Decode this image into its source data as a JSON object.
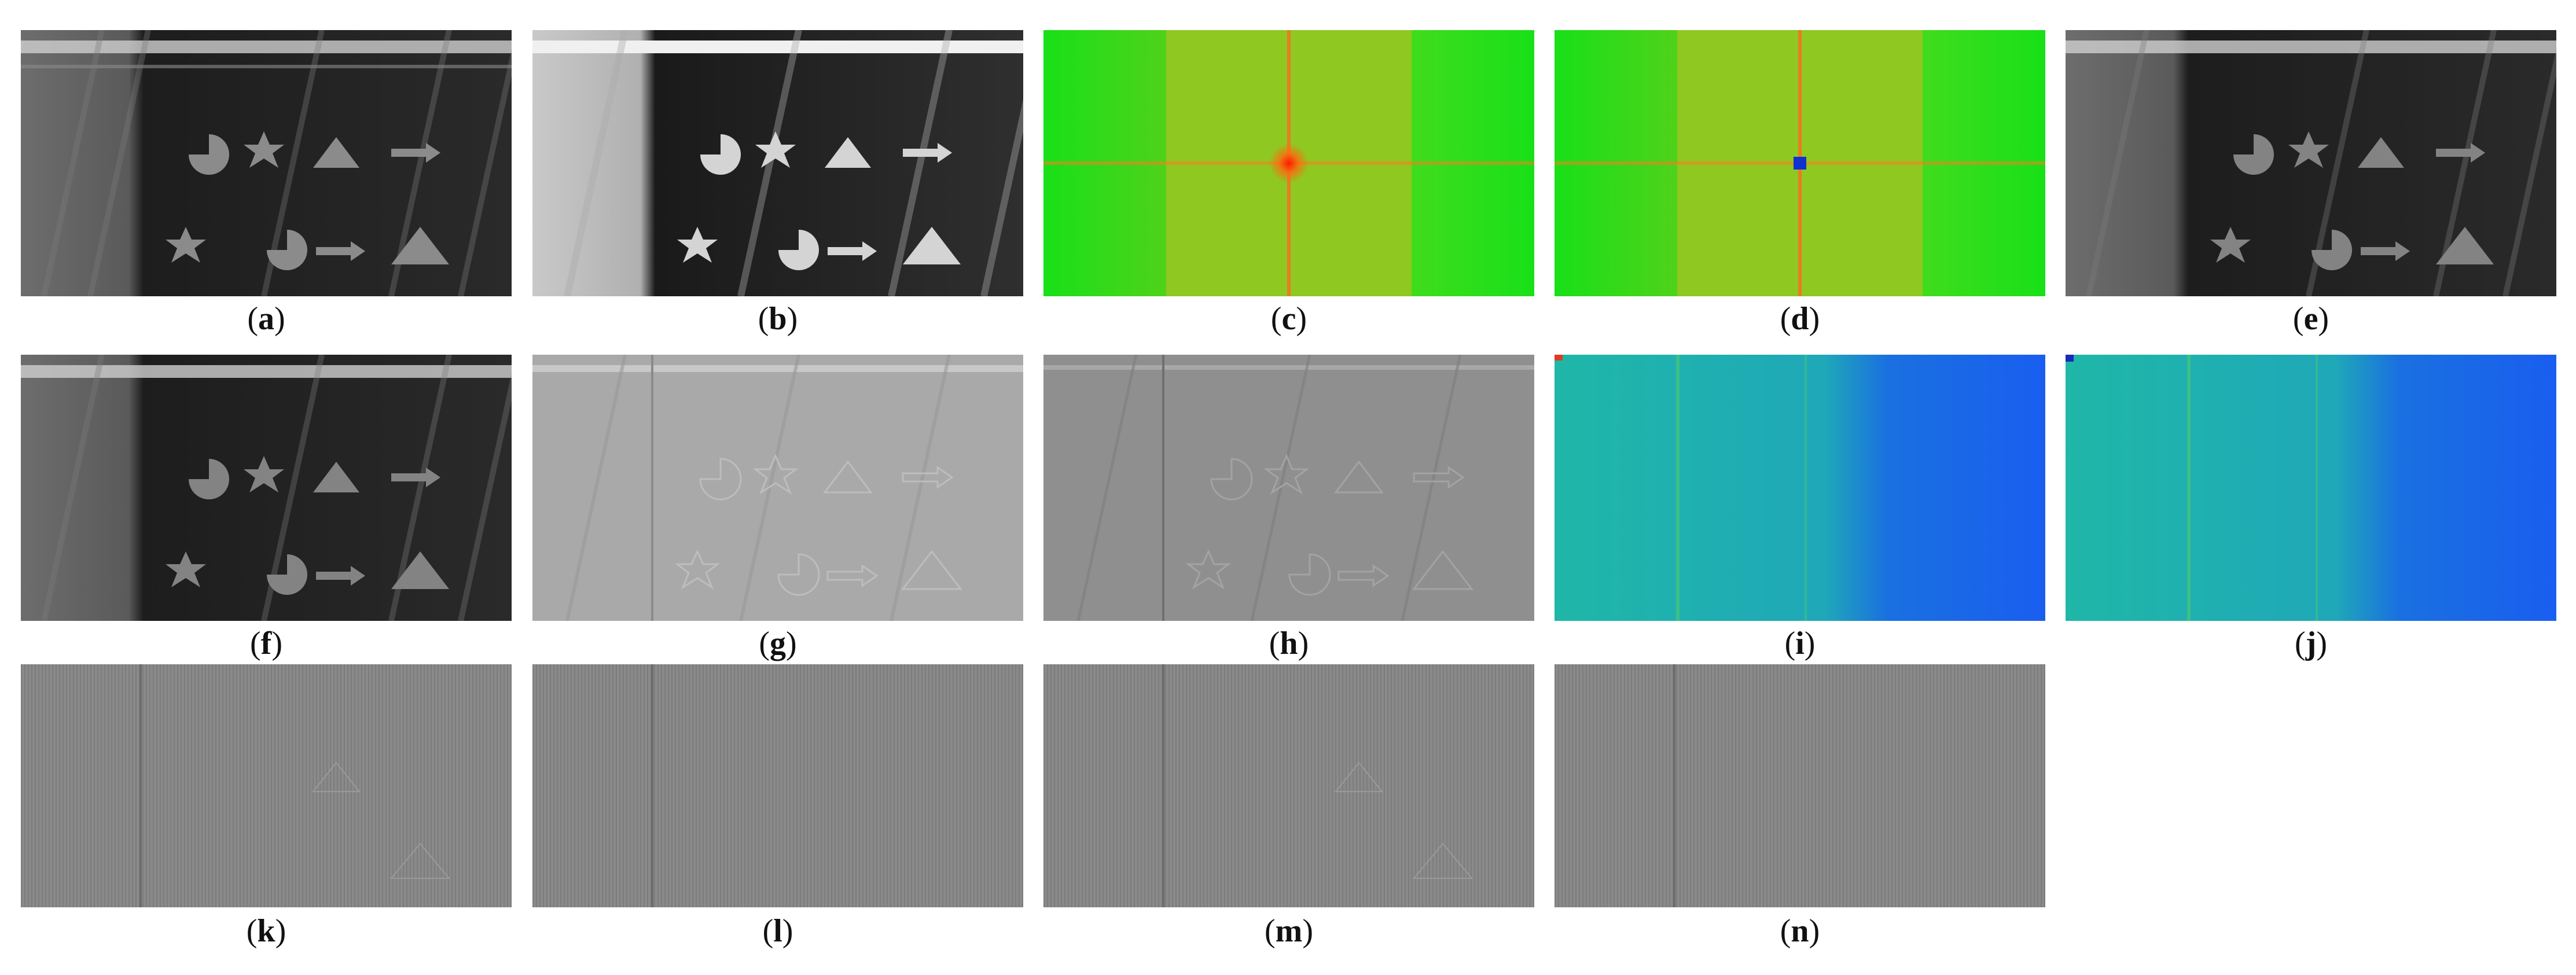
{
  "panels": [
    {
      "id": "a",
      "open": "(",
      "letter": "a",
      "close": ")",
      "kind": "xray"
    },
    {
      "id": "b",
      "open": "(",
      "letter": "b",
      "close": ")",
      "kind": "xray-bright"
    },
    {
      "id": "c",
      "open": "(",
      "letter": "c",
      "close": ")",
      "kind": "spectrum-red"
    },
    {
      "id": "d",
      "open": "(",
      "letter": "d",
      "close": ")",
      "kind": "spectrum-blue"
    },
    {
      "id": "e",
      "open": "(",
      "letter": "e",
      "close": ")",
      "kind": "xray"
    },
    {
      "id": "f",
      "open": "(",
      "letter": "f",
      "close": ")",
      "kind": "xray"
    },
    {
      "id": "g",
      "open": "(",
      "letter": "g",
      "close": ")",
      "kind": "relief-light"
    },
    {
      "id": "h",
      "open": "(",
      "letter": "h",
      "close": ")",
      "kind": "relief-gray"
    },
    {
      "id": "i",
      "open": "(",
      "letter": "i",
      "close": ")",
      "kind": "blue-map"
    },
    {
      "id": "j",
      "open": "(",
      "letter": "j",
      "close": ")",
      "kind": "blue-map"
    },
    {
      "id": "k",
      "open": "(",
      "letter": "k",
      "close": ")",
      "kind": "noise"
    },
    {
      "id": "l",
      "open": "(",
      "letter": "l",
      "close": ")",
      "kind": "noise"
    },
    {
      "id": "m",
      "open": "(",
      "letter": "m",
      "close": ")",
      "kind": "noise"
    },
    {
      "id": "n",
      "open": "(",
      "letter": "n",
      "close": ")",
      "kind": "noise"
    }
  ]
}
